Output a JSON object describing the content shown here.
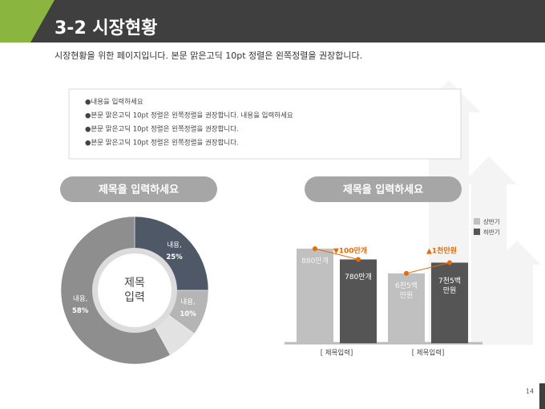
{
  "header": {
    "title": "3-2 시장현황",
    "description": "시장현황을 위한 페이지입니다. 본문 맑은고딕 10pt 정렬은 왼쪽정렬을 권장합니다."
  },
  "bullets": [
    "●내용을 입력하세요",
    "●본문 맑은고딕 10pt 정렬은 왼쪽정렬을 권장합니다. 내용을 입력하세요",
    "●본문 맑은고딕 10pt 정렬은 왼쪽정렬을 권장합니다.",
    "●본문 맑은고딕 10pt 정렬은 왼쪽정렬을 권장합니다."
  ],
  "page_number": "14",
  "chart_data": [
    {
      "type": "pie",
      "title": "제목을 입력하세요",
      "center_label": [
        "제목",
        "입력"
      ],
      "categories": [
        "내용,",
        "내용,",
        null,
        "내용,"
      ],
      "values": [
        25,
        10,
        7,
        58
      ],
      "value_labels": [
        "25%",
        "10%",
        null,
        "58%"
      ],
      "colors": [
        "#4f5866",
        "#b5b5b5",
        "#e2e2e2",
        "#8e8e8e"
      ]
    },
    {
      "type": "bar",
      "title": "제목을 입력하세요",
      "categories": [
        "[ 제목입력]",
        "[ 제목입력]"
      ],
      "series": [
        {
          "name": "상반기",
          "color": "#c0c0c0",
          "values": [
            880,
            650
          ],
          "value_labels": [
            "880만개",
            "6천5백\n만원"
          ]
        },
        {
          "name": "하반기",
          "color": "#555555",
          "values": [
            780,
            750
          ],
          "value_labels": [
            "780만개",
            "7천5백\n만원"
          ]
        }
      ],
      "annotations": [
        "▼100만개",
        "▲1천만원"
      ],
      "annotation_color": "#e46c0a"
    }
  ]
}
